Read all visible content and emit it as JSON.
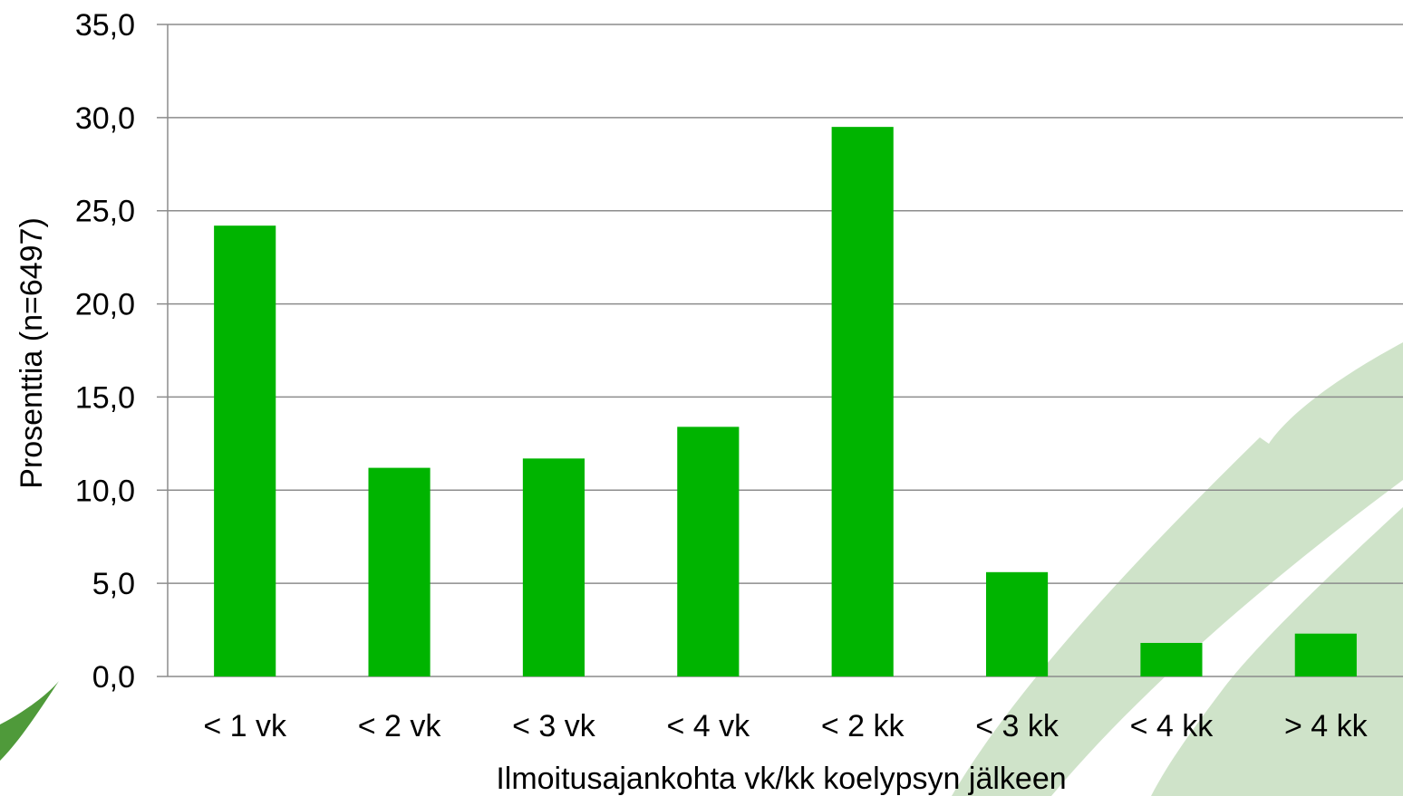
{
  "chart_data": {
    "type": "bar",
    "title": "",
    "xlabel": "Ilmoitusajankohta vk/kk koelypsyn jälkeen",
    "ylabel": "Prosenttia (n=6497)",
    "categories": [
      "< 1 vk",
      "< 2 vk",
      "< 3 vk",
      "< 4 vk",
      "< 2 kk",
      "< 3 kk",
      "< 4 kk",
      "> 4 kk"
    ],
    "values": [
      24.2,
      11.2,
      11.7,
      13.4,
      29.5,
      5.6,
      1.8,
      2.3
    ],
    "ylim": [
      0,
      35
    ],
    "yticks": [
      "0,0",
      "5,0",
      "10,0",
      "15,0",
      "20,0",
      "25,0",
      "30,0",
      "35,0"
    ],
    "grid": true,
    "legend": "none",
    "colors": {
      "bar": "#00b400",
      "grid": "#8c8c8c",
      "decor_leaf_light": "#cfe3c9",
      "decor_leaf_dark": "#4f9a3a"
    }
  }
}
